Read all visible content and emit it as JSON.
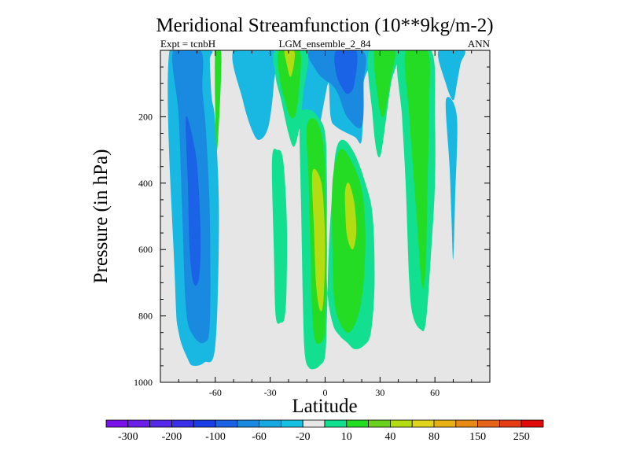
{
  "chart_data": {
    "type": "contour",
    "title": "Meridional Streamfunction (10**9kg/m-2)",
    "left_label": "Expt = tcnbH",
    "center_label": "LGM_ensemble_2_84",
    "right_label": "ANN",
    "xlabel": "Latitude",
    "ylabel": "Pressure (in hPa)",
    "xlim": [
      -90,
      90
    ],
    "ylim": [
      1000,
      0
    ],
    "x_ticks": [
      -60,
      -30,
      0,
      30,
      60
    ],
    "x_tick_labels": [
      "-60",
      "-30",
      "0",
      "30",
      "60"
    ],
    "y_ticks": [
      200,
      400,
      600,
      800,
      1000
    ],
    "y_tick_labels": [
      "200",
      "400",
      "600",
      "800",
      "1000"
    ],
    "background_color": "#e6e6e6",
    "colorbar": {
      "colors": [
        "#7a10e8",
        "#6a1ee8",
        "#5428e6",
        "#3a2fe8",
        "#1a3ee6",
        "#1a63e6",
        "#1a8ae0",
        "#18a8e0",
        "#17c0e3",
        "#e6e6e6",
        "#12e090",
        "#23dc23",
        "#6ad21e",
        "#b4dc12",
        "#e0d41a",
        "#e6b014",
        "#e68a14",
        "#e6641a",
        "#e63c14",
        "#e00a0a"
      ],
      "tick_labels": [
        "-300",
        "-200",
        "-100",
        "-60",
        "-20",
        "10",
        "40",
        "80",
        "150",
        "250"
      ]
    },
    "regions": [
      {
        "level": -20,
        "points": [
          [
            -85,
            0
          ],
          [
            -82,
            700
          ],
          [
            -80,
            850
          ],
          [
            -75,
            930
          ],
          [
            -72,
            950
          ],
          [
            -66,
            940
          ],
          [
            -60,
            890
          ],
          [
            -58,
            500
          ],
          [
            -60,
            220
          ],
          [
            -62,
            140
          ],
          [
            -63,
            30
          ],
          [
            -63,
            0
          ]
        ]
      },
      {
        "level": -60,
        "points": [
          [
            -83,
            0
          ],
          [
            -80,
            200
          ],
          [
            -78,
            500
          ],
          [
            -76,
            780
          ],
          [
            -72,
            860
          ],
          [
            -66,
            880
          ],
          [
            -63,
            820
          ],
          [
            -63,
            500
          ],
          [
            -65,
            250
          ],
          [
            -67,
            120
          ],
          [
            -68,
            0
          ]
        ]
      },
      {
        "level": -100,
        "points": [
          [
            -76,
            200
          ],
          [
            -75,
            400
          ],
          [
            -74,
            600
          ],
          [
            -72,
            700
          ],
          [
            -69,
            690
          ],
          [
            -68,
            580
          ],
          [
            -69,
            420
          ],
          [
            -71,
            300
          ]
        ]
      },
      {
        "level": -20,
        "points": [
          [
            -50,
            0
          ],
          [
            -45,
            150
          ],
          [
            -40,
            240
          ],
          [
            -36,
            270
          ],
          [
            -31,
            230
          ],
          [
            -28,
            100
          ],
          [
            -28,
            0
          ]
        ]
      },
      {
        "level": 40,
        "points": [
          [
            -60,
            0
          ],
          [
            -60,
            200
          ],
          [
            -59,
            300
          ],
          [
            -57,
            100
          ],
          [
            -57,
            0
          ]
        ]
      },
      {
        "level": -20,
        "points": [
          [
            -21,
            0
          ],
          [
            -20,
            50
          ],
          [
            -16,
            200
          ],
          [
            -12,
            260
          ],
          [
            -8,
            280
          ],
          [
            -4,
            250
          ],
          [
            0,
            140
          ],
          [
            2,
            100
          ],
          [
            3,
            200
          ],
          [
            6,
            230
          ],
          [
            16,
            260
          ],
          [
            20,
            270
          ],
          [
            21,
            100
          ],
          [
            24,
            0
          ]
        ]
      },
      {
        "level": -60,
        "points": [
          [
            -8,
            0
          ],
          [
            -5,
            60
          ],
          [
            0,
            90
          ],
          [
            3,
            100
          ],
          [
            7,
            130
          ],
          [
            12,
            200
          ],
          [
            20,
            230
          ],
          [
            21,
            100
          ],
          [
            20,
            0
          ]
        ]
      },
      {
        "level": -100,
        "points": [
          [
            6,
            0
          ],
          [
            6,
            70
          ],
          [
            10,
            120
          ],
          [
            13,
            130
          ],
          [
            16,
            100
          ],
          [
            17,
            0
          ]
        ]
      },
      {
        "level": -20,
        "points": [
          [
            62,
            0
          ],
          [
            66,
            100
          ],
          [
            70,
            150
          ],
          [
            72,
            100
          ],
          [
            74,
            40
          ],
          [
            76,
            0
          ]
        ]
      },
      {
        "level": -20,
        "points": [
          [
            66,
            150
          ],
          [
            68,
            350
          ],
          [
            69,
            500
          ],
          [
            70,
            630
          ],
          [
            71,
            450
          ],
          [
            72,
            200
          ]
        ]
      },
      {
        "level": 10,
        "points": [
          [
            -27,
            0
          ],
          [
            -27,
            80
          ],
          [
            -24,
            150
          ],
          [
            -20,
            250
          ],
          [
            -17,
            290
          ],
          [
            -14,
            230
          ],
          [
            -12,
            130
          ],
          [
            -10,
            0
          ]
        ]
      },
      {
        "level": 40,
        "points": [
          [
            -25,
            0
          ],
          [
            -25,
            80
          ],
          [
            -22,
            150
          ],
          [
            -19,
            200
          ],
          [
            -16,
            190
          ],
          [
            -14,
            100
          ],
          [
            -14,
            0
          ]
        ]
      },
      {
        "level": 80,
        "points": [
          [
            -22,
            0
          ],
          [
            -21,
            40
          ],
          [
            -19,
            80
          ],
          [
            -17,
            40
          ],
          [
            -17,
            0
          ]
        ]
      },
      {
        "level": 10,
        "points": [
          [
            -29,
            330
          ],
          [
            -28,
            600
          ],
          [
            -27,
            800
          ],
          [
            -24,
            820
          ],
          [
            -22,
            800
          ],
          [
            -21,
            700
          ],
          [
            -21,
            500
          ],
          [
            -23,
            330
          ],
          [
            -26,
            300
          ]
        ]
      },
      {
        "level": 10,
        "points": [
          [
            -14,
            200
          ],
          [
            -13,
            500
          ],
          [
            -12,
            800
          ],
          [
            -11,
            920
          ],
          [
            -9,
            955
          ],
          [
            -6,
            960
          ],
          [
            -3,
            950
          ],
          [
            0,
            920
          ],
          [
            1,
            800
          ],
          [
            2,
            600
          ],
          [
            4,
            420
          ],
          [
            6,
            300
          ],
          [
            10,
            270
          ],
          [
            16,
            310
          ],
          [
            22,
            400
          ],
          [
            26,
            500
          ],
          [
            27,
            700
          ],
          [
            25,
            850
          ],
          [
            21,
            890
          ],
          [
            16,
            900
          ],
          [
            12,
            880
          ],
          [
            8,
            860
          ],
          [
            4,
            820
          ],
          [
            1,
            700
          ],
          [
            1,
            400
          ],
          [
            0,
            250
          ],
          [
            -4,
            200
          ],
          [
            -8,
            180
          ],
          [
            -12,
            180
          ]
        ]
      },
      {
        "level": 40,
        "points": [
          [
            -10,
            230
          ],
          [
            -9,
            400
          ],
          [
            -8,
            600
          ],
          [
            -7,
            800
          ],
          [
            -5,
            880
          ],
          [
            -1,
            870
          ],
          [
            0,
            820
          ],
          [
            1,
            600
          ],
          [
            0,
            400
          ],
          [
            -1,
            280
          ],
          [
            -5,
            210
          ]
        ]
      },
      {
        "level": 40,
        "points": [
          [
            4,
            400
          ],
          [
            8,
            300
          ],
          [
            14,
            330
          ],
          [
            20,
            420
          ],
          [
            22,
            550
          ],
          [
            21,
            700
          ],
          [
            18,
            800
          ],
          [
            13,
            850
          ],
          [
            8,
            820
          ],
          [
            5,
            750
          ],
          [
            4,
            600
          ]
        ]
      },
      {
        "level": 80,
        "points": [
          [
            -7,
            370
          ],
          [
            -6,
            550
          ],
          [
            -5,
            700
          ],
          [
            -3,
            780
          ],
          [
            -1,
            760
          ],
          [
            0,
            600
          ],
          [
            -1,
            450
          ],
          [
            -3,
            380
          ]
        ]
      },
      {
        "level": 80,
        "points": [
          [
            11,
            420
          ],
          [
            13,
            400
          ],
          [
            16,
            460
          ],
          [
            17,
            550
          ],
          [
            15,
            600
          ],
          [
            12,
            560
          ],
          [
            11,
            480
          ]
        ]
      },
      {
        "level": 10,
        "points": [
          [
            24,
            0
          ],
          [
            26,
            200
          ],
          [
            28,
            300
          ],
          [
            30,
            320
          ],
          [
            32,
            260
          ],
          [
            36,
            100
          ],
          [
            40,
            0
          ]
        ]
      },
      {
        "level": 40,
        "points": [
          [
            27,
            0
          ],
          [
            29,
            150
          ],
          [
            31,
            200
          ],
          [
            33,
            180
          ],
          [
            36,
            80
          ],
          [
            38,
            0
          ]
        ]
      },
      {
        "level": 10,
        "points": [
          [
            40,
            0
          ],
          [
            42,
            200
          ],
          [
            44,
            400
          ],
          [
            46,
            700
          ],
          [
            48,
            800
          ],
          [
            52,
            840
          ],
          [
            55,
            820
          ],
          [
            58,
            600
          ],
          [
            60,
            400
          ],
          [
            60,
            200
          ],
          [
            58,
            0
          ]
        ]
      },
      {
        "level": 40,
        "points": [
          [
            44,
            0
          ],
          [
            46,
            200
          ],
          [
            50,
            500
          ],
          [
            53,
            710
          ],
          [
            55,
            650
          ],
          [
            56,
            400
          ],
          [
            57,
            150
          ],
          [
            56,
            0
          ]
        ]
      }
    ]
  }
}
